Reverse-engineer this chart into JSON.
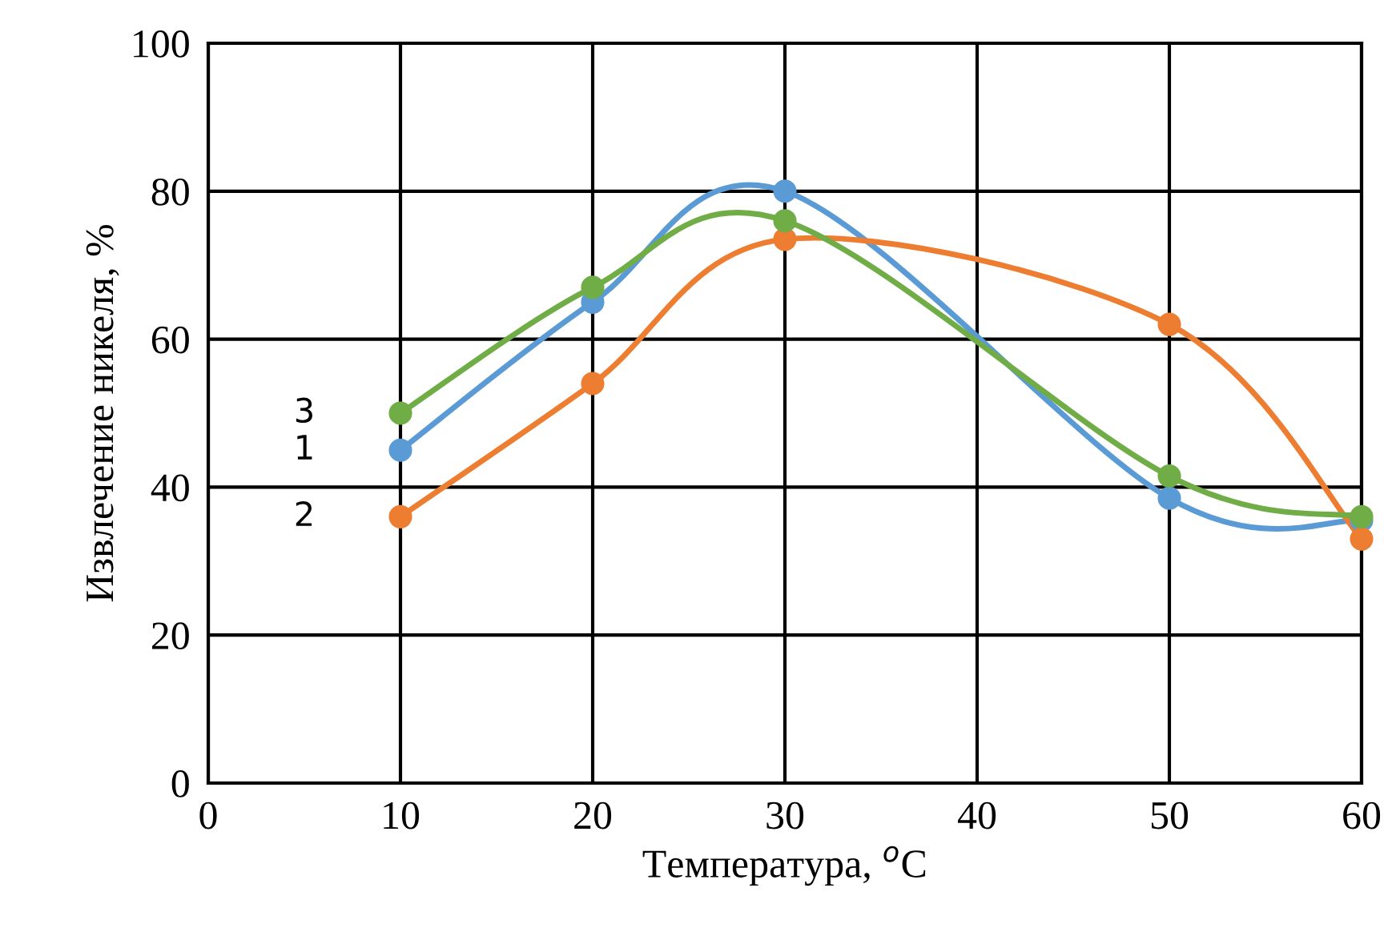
{
  "chart_data": {
    "type": "line",
    "xlabel": "Температура, $^{o}$C",
    "ylabel": "Извлечение никеля, %",
    "x": [
      10,
      20,
      30,
      50,
      60
    ],
    "series": [
      {
        "name": "1",
        "color": "#5b9bd5",
        "values": [
          45,
          65,
          80,
          38.5,
          35.5
        ]
      },
      {
        "name": "2",
        "color": "#ed7d31",
        "values": [
          36,
          54,
          73.5,
          62,
          33
        ]
      },
      {
        "name": "3",
        "color": "#70ad47",
        "values": [
          50,
          67,
          76,
          41.5,
          36
        ]
      }
    ],
    "xlim": [
      0,
      60
    ],
    "xticks": [
      0,
      10,
      20,
      30,
      40,
      50,
      60
    ],
    "ylim": [
      0,
      100
    ],
    "yticks": [
      0,
      20,
      40,
      60,
      80,
      100
    ],
    "grid": true,
    "marker": "circle",
    "line_style": "solid"
  }
}
